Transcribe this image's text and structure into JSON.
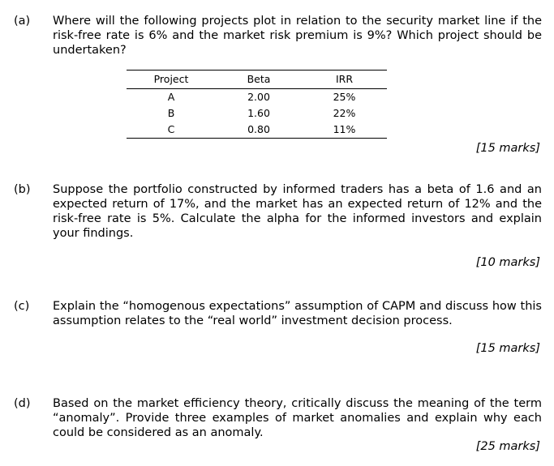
{
  "questions": [
    {
      "label": "(a)",
      "text": "Where will the following projects plot in relation to the security market line if the risk-free rate is 6% and the market risk premium is 9%? Which project should be undertaken?",
      "marks": "[15 marks]"
    },
    {
      "label": "(b)",
      "text": "Suppose the portfolio constructed by informed traders has a beta of 1.6 and an expected return of 17%, and the market has an expected return of 12% and the risk-free rate is 5%. Calculate the alpha for the informed investors and explain your findings.",
      "marks": "[10 marks]"
    },
    {
      "label": "(c)",
      "text": "Explain the “homogenous expectations” assumption of CAPM and discuss how this assumption relates to the “real world” investment decision process.",
      "marks": "[15 marks]"
    },
    {
      "label": "(d)",
      "text": "Based on the market efficiency theory, critically discuss the meaning of the term “anomaly”. Provide three examples of market anomalies and explain why each could be considered as an anomaly.",
      "marks": "[25 marks]"
    }
  ],
  "table": {
    "headers": [
      "Project",
      "Beta",
      "IRR"
    ],
    "rows": [
      [
        "A",
        "2.00",
        "25%"
      ],
      [
        "B",
        "1.60",
        "22%"
      ],
      [
        "C",
        "0.80",
        "11%"
      ]
    ]
  }
}
